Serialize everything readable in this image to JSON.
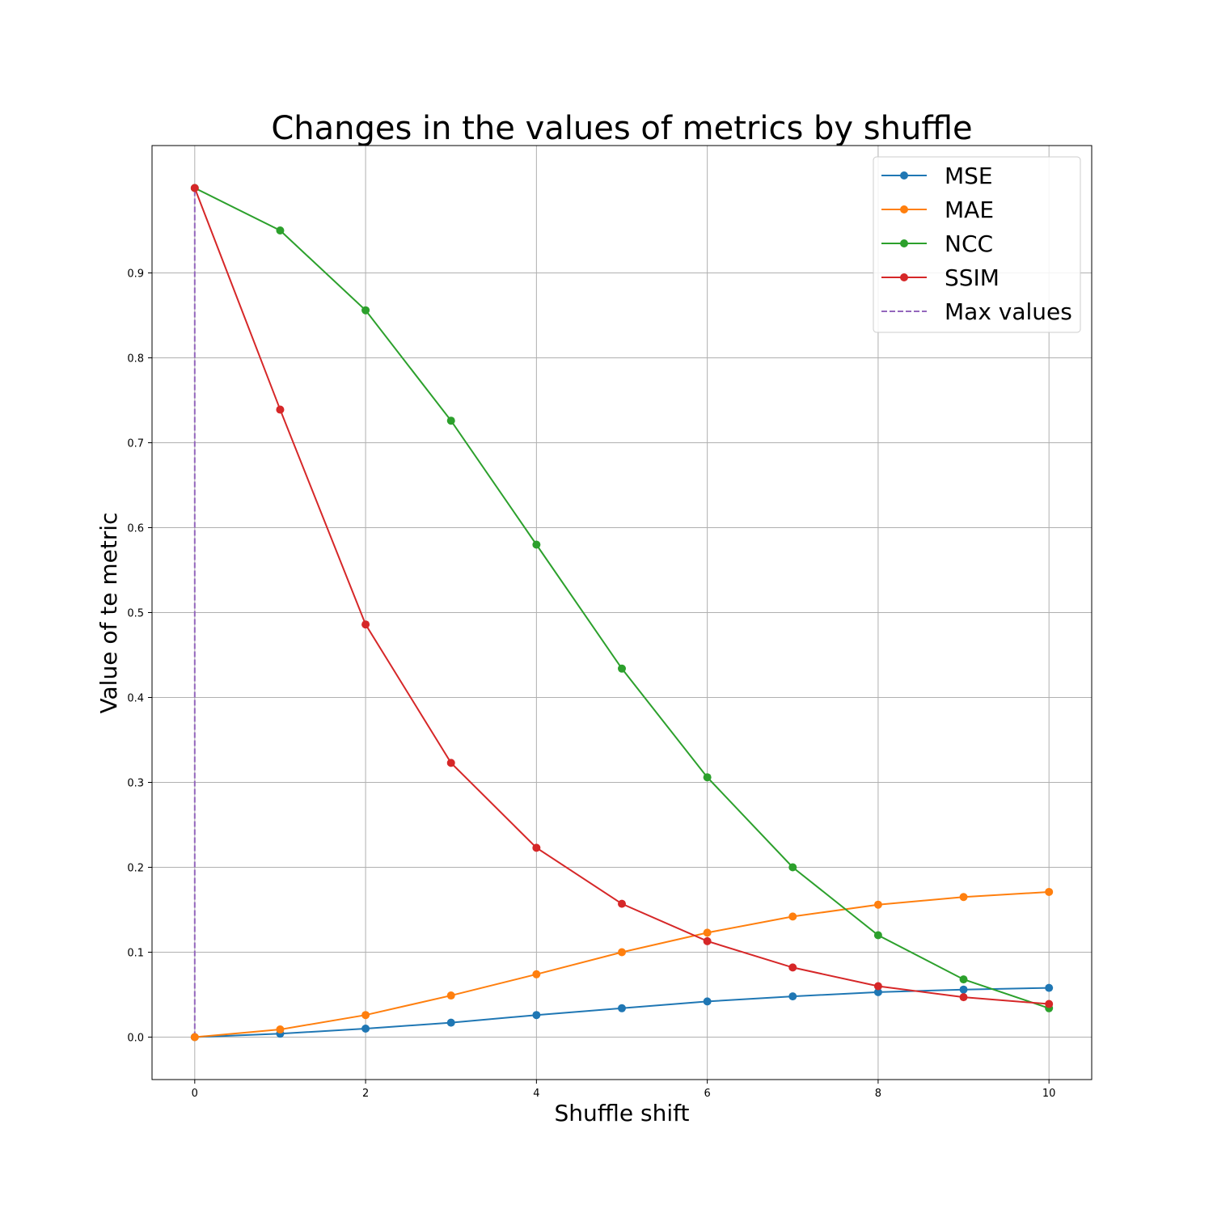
{
  "chart_data": {
    "type": "line",
    "title": "Changes in the values of metrics by shuffle",
    "xlabel": "Shuffle shift",
    "ylabel": "Value of te metric",
    "xlim": [
      -0.5,
      10.5
    ],
    "ylim": [
      -0.05,
      1.05
    ],
    "x_ticks": [
      0,
      2,
      4,
      6,
      8,
      10
    ],
    "x_tick_labels": [
      "0",
      "2",
      "4",
      "6",
      "8",
      "10"
    ],
    "y_ticks": [
      0.0,
      0.1,
      0.2,
      0.3,
      0.4,
      0.5,
      0.6,
      0.7,
      0.8,
      0.9
    ],
    "y_tick_labels": [
      "0.0",
      "0.1",
      "0.2",
      "0.3",
      "0.4",
      "0.5",
      "0.6",
      "0.7",
      "0.8",
      "0.9"
    ],
    "grid": true,
    "legend_position": "top-right",
    "x": [
      0,
      1,
      2,
      3,
      4,
      5,
      6,
      7,
      8,
      9,
      10
    ],
    "series": [
      {
        "name": "MSE",
        "color": "#1f77b4",
        "marker": "circle",
        "values": [
          0.0,
          0.004,
          0.01,
          0.017,
          0.026,
          0.034,
          0.042,
          0.048,
          0.053,
          0.056,
          0.058
        ]
      },
      {
        "name": "MAE",
        "color": "#ff7f0e",
        "marker": "circle",
        "values": [
          0.0,
          0.009,
          0.026,
          0.049,
          0.074,
          0.1,
          0.123,
          0.142,
          0.156,
          0.165,
          0.171
        ]
      },
      {
        "name": "NCC",
        "color": "#2ca02c",
        "marker": "circle",
        "values": [
          1.0,
          0.95,
          0.856,
          0.726,
          0.58,
          0.434,
          0.306,
          0.2,
          0.12,
          0.068,
          0.034
        ]
      },
      {
        "name": "SSIM",
        "color": "#d62728",
        "marker": "circle",
        "values": [
          1.0,
          0.739,
          0.486,
          0.323,
          0.223,
          0.157,
          0.113,
          0.082,
          0.06,
          0.047,
          0.039
        ]
      }
    ],
    "vlines": [
      {
        "name": "Max values",
        "color": "#9467bd",
        "style": "dashed",
        "x": 0,
        "y_from": 0.0,
        "y_to": 1.0
      }
    ]
  }
}
